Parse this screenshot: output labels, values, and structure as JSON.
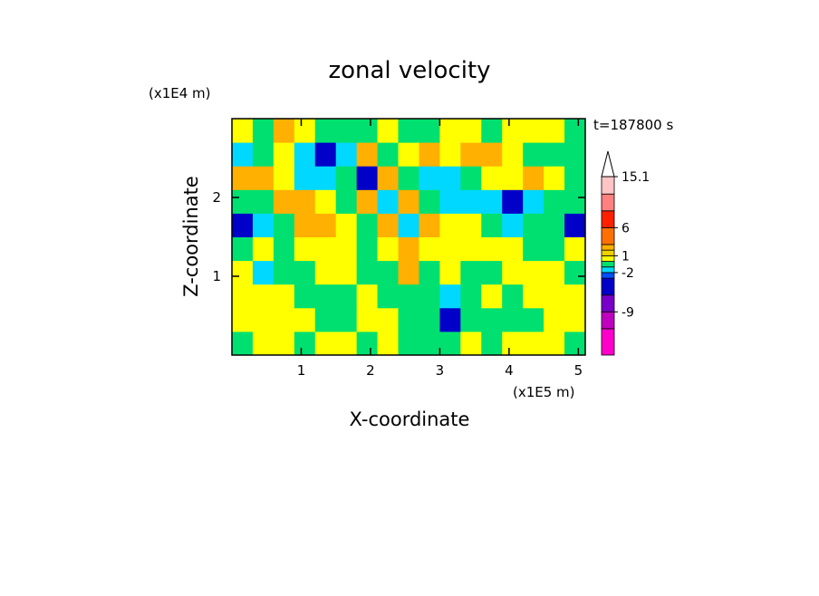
{
  "chart_data": {
    "type": "contour",
    "title": "zonal velocity",
    "time_label": "t=187800 s",
    "xlabel": "X-coordinate",
    "ylabel": "Z-coordinate",
    "x_unit": "(x1E5 m)",
    "y_unit": "(x1E4 m)",
    "xlim": [
      0,
      5.1
    ],
    "ylim": [
      0,
      3
    ],
    "xticks": [
      1,
      2,
      3,
      4,
      5
    ],
    "yticks": [
      1,
      2
    ],
    "x": [
      0,
      0.3,
      0.6,
      0.9,
      1.2,
      1.5,
      1.8,
      2.1,
      2.4,
      2.7,
      3.0,
      3.3,
      3.6,
      3.9,
      4.2,
      4.5,
      4.8,
      5.1
    ],
    "y": [
      0,
      0.3,
      0.6,
      0.9,
      1.2,
      1.5,
      1.8,
      2.1,
      2.4,
      2.7,
      3.0
    ],
    "values": [
      [
        -0.5,
        0.5,
        0.5,
        -0.5,
        0.5,
        0.5,
        -0.5,
        0.5,
        -0.5,
        -0.5,
        -0.5,
        0.5,
        -0.5,
        0.5,
        0.5,
        0.5,
        -0.5
      ],
      [
        0.5,
        0.5,
        0.5,
        0.5,
        -0.5,
        -0.5,
        0.5,
        0.5,
        -0.5,
        -0.5,
        -4,
        -0.5,
        -0.5,
        -0.5,
        -0.5,
        0.5,
        0.5
      ],
      [
        0.5,
        0.5,
        0.5,
        -0.5,
        -0.5,
        -0.5,
        0.5,
        -0.5,
        -0.5,
        -0.5,
        -1.5,
        -0.5,
        0.5,
        -0.5,
        0.5,
        0.5,
        0.5
      ],
      [
        0.5,
        -1.5,
        -0.5,
        -0.5,
        0.5,
        0.5,
        -0.5,
        -0.5,
        2.5,
        -0.5,
        0.5,
        -0.5,
        -0.5,
        0.5,
        0.5,
        0.5,
        -0.5
      ],
      [
        -0.5,
        0.5,
        -0.5,
        0.5,
        0.5,
        0.5,
        -0.5,
        0.5,
        2.5,
        0.5,
        0.5,
        0.5,
        0.5,
        0.5,
        -0.5,
        -0.5,
        0.5
      ],
      [
        -4,
        -1.5,
        -0.5,
        2.5,
        2.5,
        0.5,
        -0.5,
        2.5,
        -1.5,
        2.5,
        0.5,
        0.5,
        -0.5,
        -1.5,
        -0.5,
        -0.5,
        -4
      ],
      [
        -0.5,
        -0.5,
        2.5,
        2.5,
        0.5,
        -0.5,
        2.5,
        -1.5,
        2.5,
        -0.5,
        -1.5,
        -1.5,
        -1.5,
        -4,
        -1.5,
        -0.5,
        -0.5
      ],
      [
        2.5,
        2.5,
        0.5,
        -1.5,
        -1.5,
        -0.5,
        -4,
        2.5,
        -0.5,
        -1.5,
        -1.5,
        -0.5,
        0.5,
        0.5,
        2.5,
        0.5,
        -0.5
      ],
      [
        -1.5,
        -0.5,
        0.5,
        -1.5,
        -4,
        -1.5,
        2.5,
        -0.5,
        0.5,
        2.5,
        0.5,
        2.5,
        2.5,
        0.5,
        -0.5,
        -0.5,
        -0.5
      ],
      [
        0.5,
        -0.5,
        2.5,
        0.5,
        -0.5,
        -0.5,
        -0.5,
        0.5,
        -0.5,
        -0.5,
        0.5,
        0.5,
        -0.5,
        0.5,
        0.5,
        0.5,
        -0.5
      ]
    ],
    "levels": [
      -16.7,
      -12,
      -9,
      -6,
      -3,
      -2,
      -1,
      0,
      1,
      2,
      3,
      6,
      9,
      12,
      15.1
    ],
    "colors": [
      "#ff00cc",
      "#c000c0",
      "#7800c8",
      "#0000c8",
      "#0050ff",
      "#00d8ff",
      "#00e070",
      "#ffff00",
      "#f0d000",
      "#ffb000",
      "#ff7000",
      "#ff2000",
      "#ff8080",
      "#ffc4c4"
    ],
    "colorbar_ticks": [
      15.1,
      6,
      1,
      -2,
      -9
    ]
  }
}
